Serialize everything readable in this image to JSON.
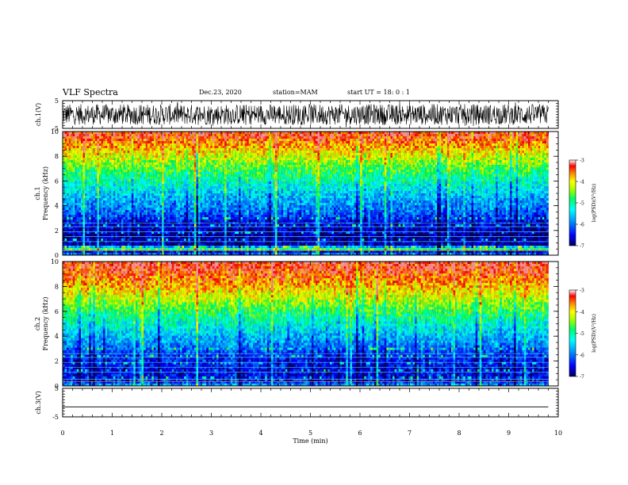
{
  "header": {
    "title": "VLF Spectra",
    "date": "Dec.23, 2020",
    "station": "station=MAM",
    "start": "start UT =  18: 0 : 1"
  },
  "chart_data": [
    {
      "type": "line",
      "panel": "ch1-waveform",
      "ylabel": "ch.1(V)",
      "ylim": [
        -5,
        5
      ],
      "yticks": [
        "5",
        "-5"
      ],
      "description_values": "dense noisy waveform oscillating roughly between -4 and 4 V over 0-9.8 min",
      "color": "#000000"
    },
    {
      "type": "heatmap",
      "panel": "ch1-spectrogram",
      "ylabel": "ch.1 Frequency (kHz)",
      "ylabel_lines": [
        "ch.1",
        "Frequency (kHz)"
      ],
      "ylim": [
        0,
        10
      ],
      "yticks": [
        "0",
        "2",
        "4",
        "6",
        "8",
        "10"
      ],
      "xlim": [
        0,
        9.8
      ],
      "profile_logPSD": [
        [
          0,
          -5.8
        ],
        [
          0.3,
          -6.5
        ],
        [
          0.5,
          -4.5
        ],
        [
          0.8,
          -6.7
        ],
        [
          1.5,
          -6.8
        ],
        [
          2.5,
          -6.6
        ],
        [
          3.0,
          -6.3
        ],
        [
          3.5,
          -6.0
        ],
        [
          4.5,
          -5.7
        ],
        [
          5.5,
          -5.3
        ],
        [
          6.5,
          -4.9
        ],
        [
          7.5,
          -4.4
        ],
        [
          8.5,
          -3.9
        ],
        [
          9.5,
          -3.4
        ],
        [
          10,
          -3.3
        ]
      ],
      "colorbar": {
        "label": "log(PSD)(V²/Hz)",
        "range": [
          -7,
          -3
        ],
        "ticks": [
          "-3",
          "-4",
          "-5",
          "-6",
          "-7"
        ]
      }
    },
    {
      "type": "heatmap",
      "panel": "ch2-spectrogram",
      "ylabel": "ch.2 Frequency (kHz)",
      "ylabel_lines": [
        "ch.2",
        "Frequency (kHz)"
      ],
      "ylim": [
        0,
        10
      ],
      "yticks": [
        "0",
        "2",
        "4",
        "6",
        "8",
        "10"
      ],
      "xlim": [
        0,
        9.8
      ],
      "profile_logPSD": [
        [
          0,
          -5.6
        ],
        [
          0.3,
          -6.2
        ],
        [
          0.8,
          -6.5
        ],
        [
          1.5,
          -6.5
        ],
        [
          2.5,
          -6.3
        ],
        [
          3.0,
          -6.0
        ],
        [
          3.5,
          -5.8
        ],
        [
          4.5,
          -5.4
        ],
        [
          5.5,
          -5.0
        ],
        [
          6.5,
          -4.5
        ],
        [
          7.5,
          -4.0
        ],
        [
          8.5,
          -3.6
        ],
        [
          9.5,
          -3.3
        ],
        [
          10,
          -3.2
        ]
      ],
      "colorbar": {
        "label": "log(PSD)(V²/Hz)",
        "range": [
          -7,
          -3
        ],
        "ticks": [
          "-3",
          "-4",
          "-5",
          "-6",
          "-7"
        ]
      }
    },
    {
      "type": "line",
      "panel": "ch3-waveform",
      "ylabel": "ch.3(V)",
      "ylim": [
        -5,
        5
      ],
      "yticks": [
        "5",
        "-5"
      ],
      "x": [
        0,
        9.8
      ],
      "y": [
        -1.5,
        -1.5
      ],
      "color": "#000000"
    }
  ],
  "xaxis": {
    "label": "Time (min)",
    "range": [
      0,
      10
    ],
    "ticks": [
      "0",
      "1",
      "2",
      "3",
      "4",
      "5",
      "6",
      "7",
      "8",
      "9",
      "10"
    ]
  },
  "colors": {
    "colormap": [
      "#000080",
      "#0000ff",
      "#00a0ff",
      "#00ffff",
      "#00ff60",
      "#a0ff00",
      "#ffff00",
      "#ff8000",
      "#ff0000",
      "#ffffff"
    ]
  }
}
